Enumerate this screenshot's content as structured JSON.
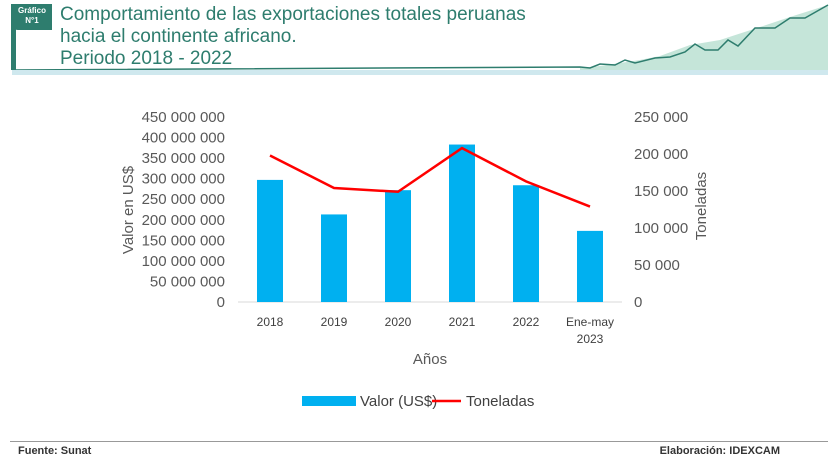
{
  "header": {
    "badge_line1": "Gráfico",
    "badge_line2": "N°1",
    "title_lines": [
      "Comportamiento de las exportaciones totales peruanas",
      "hacia el continente africano.",
      "Periodo 2018 - 2022"
    ],
    "accent": "#2e7d6e"
  },
  "chart_data": {
    "type": "bar+line",
    "categories": [
      "2018",
      "2019",
      "2020",
      "2021",
      "2022",
      "Ene-may 2023"
    ],
    "series": [
      {
        "name": "Valor (US$)",
        "type": "bar",
        "axis": "left",
        "color": "#00b0f0",
        "values": [
          297000000,
          213000000,
          272000000,
          383000000,
          284000000,
          173000000
        ]
      },
      {
        "name": "Toneladas",
        "type": "line",
        "axis": "right",
        "color": "#ff0000",
        "values": [
          198000,
          154000,
          149000,
          208000,
          163000,
          129000
        ]
      }
    ],
    "xlabel": "Años",
    "ylabel": "Valor en US$",
    "y2label": "Toneladas",
    "ylim": [
      0,
      450000000
    ],
    "y2lim": [
      0,
      250000
    ],
    "yticks": [
      "0",
      "50 000 000",
      "100 000 000",
      "150 000 000",
      "200 000 000",
      "250 000 000",
      "300 000 000",
      "350 000 000",
      "400 000 000",
      "450 000 000"
    ],
    "y2ticks": [
      "0",
      "50 000",
      "100 000",
      "150 000",
      "200 000",
      "250 000"
    ],
    "grid": false,
    "legend": "bottom"
  },
  "footer": {
    "source": "Fuente: Sunat",
    "credit": "Elaboración: IDEXCAM"
  }
}
